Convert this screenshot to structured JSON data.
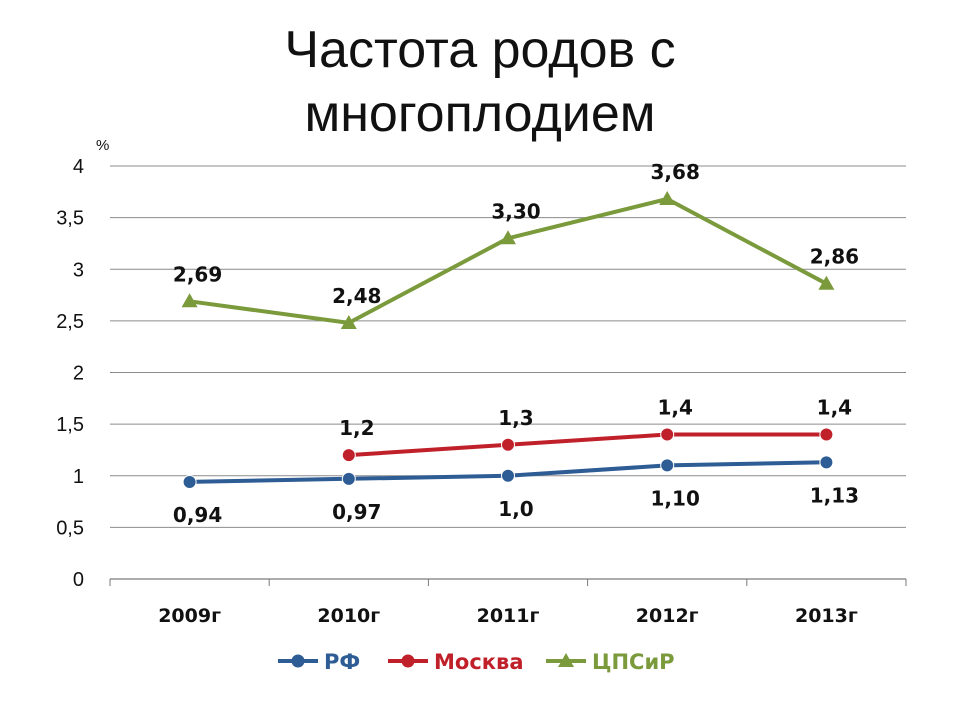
{
  "slide": {
    "title_line1": "Частота родов с",
    "title_line2": "многоплодием"
  },
  "chart_data": {
    "type": "line",
    "unit_label": "%",
    "categories": [
      "2009г",
      "2010г",
      "2011г",
      "2012г",
      "2013г"
    ],
    "y_ticks": [
      "0",
      "0,5",
      "1",
      "1,5",
      "2",
      "2,5",
      "3",
      "3,5",
      "4"
    ],
    "ylim": [
      0,
      4
    ],
    "grid": true,
    "legend_position": "bottom",
    "series": [
      {
        "name": "РФ",
        "color": "#2E5C94",
        "marker": "circle",
        "values": [
          0.94,
          0.97,
          1.0,
          1.1,
          1.13
        ],
        "labels": [
          "0,94",
          "0,97",
          "1,0",
          "1,10",
          "1,13"
        ],
        "label_position": "below"
      },
      {
        "name": "Москва",
        "color": "#C0202A",
        "marker": "circle",
        "values": [
          null,
          1.2,
          1.3,
          1.4,
          1.4
        ],
        "labels": [
          null,
          "1,2",
          "1,3",
          "1,4",
          "1,4"
        ],
        "label_position": "above"
      },
      {
        "name": "ЦПСиР",
        "color": "#7A9A3C",
        "marker": "triangle",
        "values": [
          2.69,
          2.48,
          3.3,
          3.68,
          2.86
        ],
        "labels": [
          "2,69",
          "2,48",
          "3,30",
          "3,68",
          "2,86"
        ],
        "label_position": "above"
      }
    ]
  }
}
